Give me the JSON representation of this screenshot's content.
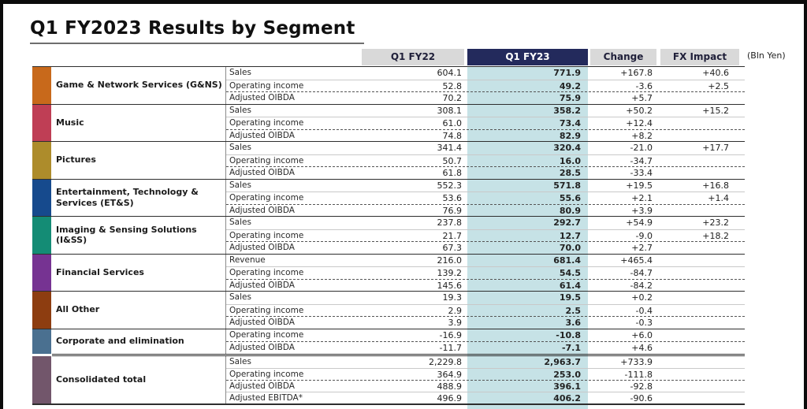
{
  "slide": {
    "title": "Q1 FY2023 Results by Segment",
    "unit_note": "(Bln Yen)"
  },
  "colors": {
    "header_gray": "#d9d9d9",
    "header_navy": "#232a5c",
    "highlight_column": "#c6e2e6"
  },
  "table": {
    "columns": [
      {
        "key": "fy22",
        "label": "Q1 FY22"
      },
      {
        "key": "fy23",
        "label": "Q1 FY23"
      },
      {
        "key": "change",
        "label": "Change"
      },
      {
        "key": "fx",
        "label": "FX Impact"
      }
    ],
    "segments": [
      {
        "name": "Game & Network Services (G&NS)",
        "color": "#c8691b",
        "rows": [
          {
            "metric": "Sales",
            "fy22": "604.1",
            "fy23": "771.9",
            "change": "+167.8",
            "fx": "+40.6"
          },
          {
            "metric": "Operating income",
            "fy22": "52.8",
            "fy23": "49.2",
            "change": "-3.6",
            "fx": "+2.5"
          },
          {
            "metric": "Adjusted OIBDA",
            "fy22": "70.2",
            "fy23": "75.9",
            "change": "+5.7",
            "fx": ""
          }
        ]
      },
      {
        "name": "Music",
        "color": "#bf3e55",
        "rows": [
          {
            "metric": "Sales",
            "fy22": "308.1",
            "fy23": "358.2",
            "change": "+50.2",
            "fx": "+15.2"
          },
          {
            "metric": "Operating income",
            "fy22": "61.0",
            "fy23": "73.4",
            "change": "+12.4",
            "fx": ""
          },
          {
            "metric": "Adjusted OIBDA",
            "fy22": "74.8",
            "fy23": "82.9",
            "change": "+8.2",
            "fx": ""
          }
        ]
      },
      {
        "name": "Pictures",
        "color": "#ad8c2b",
        "rows": [
          {
            "metric": "Sales",
            "fy22": "341.4",
            "fy23": "320.4",
            "change": "-21.0",
            "fx": "+17.7"
          },
          {
            "metric": "Operating income",
            "fy22": "50.7",
            "fy23": "16.0",
            "change": "-34.7",
            "fx": ""
          },
          {
            "metric": "Adjusted OIBDA",
            "fy22": "61.8",
            "fy23": "28.5",
            "change": "-33.4",
            "fx": ""
          }
        ]
      },
      {
        "name": "Entertainment, Technology & Services (ET&S)",
        "color": "#164a8d",
        "rows": [
          {
            "metric": "Sales",
            "fy22": "552.3",
            "fy23": "571.8",
            "change": "+19.5",
            "fx": "+16.8"
          },
          {
            "metric": "Operating income",
            "fy22": "53.6",
            "fy23": "55.6",
            "change": "+2.1",
            "fx": "+1.4"
          },
          {
            "metric": "Adjusted OIBDA",
            "fy22": "76.9",
            "fy23": "80.9",
            "change": "+3.9",
            "fx": ""
          }
        ]
      },
      {
        "name": "Imaging & Sensing Solutions (I&SS)",
        "color": "#148c75",
        "rows": [
          {
            "metric": "Sales",
            "fy22": "237.8",
            "fy23": "292.7",
            "change": "+54.9",
            "fx": "+23.2"
          },
          {
            "metric": "Operating income",
            "fy22": "21.7",
            "fy23": "12.7",
            "change": "-9.0",
            "fx": "+18.2"
          },
          {
            "metric": "Adjusted OIBDA",
            "fy22": "67.3",
            "fy23": "70.0",
            "change": "+2.7",
            "fx": ""
          }
        ]
      },
      {
        "name": "Financial Services",
        "color": "#763392",
        "rows": [
          {
            "metric": "Revenue",
            "fy22": "216.0",
            "fy23": "681.4",
            "change": "+465.4",
            "fx": ""
          },
          {
            "metric": "Operating income",
            "fy22": "139.2",
            "fy23": "54.5",
            "change": "-84.7",
            "fx": ""
          },
          {
            "metric": "Adjusted OIBDA",
            "fy22": "145.6",
            "fy23": "61.4",
            "change": "-84.2",
            "fx": ""
          }
        ]
      },
      {
        "name": "All Other",
        "color": "#8d3d10",
        "rows": [
          {
            "metric": "Sales",
            "fy22": "19.3",
            "fy23": "19.5",
            "change": "+0.2",
            "fx": ""
          },
          {
            "metric": "Operating income",
            "fy22": "2.9",
            "fy23": "2.5",
            "change": "-0.4",
            "fx": ""
          },
          {
            "metric": "Adjusted OIBDA",
            "fy22": "3.9",
            "fy23": "3.6",
            "change": "-0.3",
            "fx": ""
          }
        ]
      },
      {
        "name": "Corporate and elimination",
        "color": "#4a7090",
        "rows": [
          {
            "metric": "Operating income",
            "fy22": "-16.9",
            "fy23": "-10.8",
            "change": "+6.0",
            "fx": ""
          },
          {
            "metric": "Adjusted OIBDA",
            "fy22": "-11.7",
            "fy23": "-7.1",
            "change": "+4.6",
            "fx": ""
          }
        ]
      },
      {
        "name": "Consolidated total",
        "color": "#72566b",
        "separator_before": true,
        "rows": [
          {
            "metric": "Sales",
            "fy22": "2,229.8",
            "fy23": "2,963.7",
            "change": "+733.9",
            "fx": ""
          },
          {
            "metric": "Operating income",
            "fy22": "364.9",
            "fy23": "253.0",
            "change": "-111.8",
            "fx": ""
          },
          {
            "metric": "Adjusted OIBDA",
            "fy22": "488.9",
            "fy23": "396.1",
            "change": "-92.8",
            "fx": ""
          },
          {
            "metric": "Adjusted EBITDA*",
            "fy22": "496.9",
            "fy23": "406.2",
            "change": "-90.6",
            "fx": ""
          }
        ]
      }
    ]
  }
}
